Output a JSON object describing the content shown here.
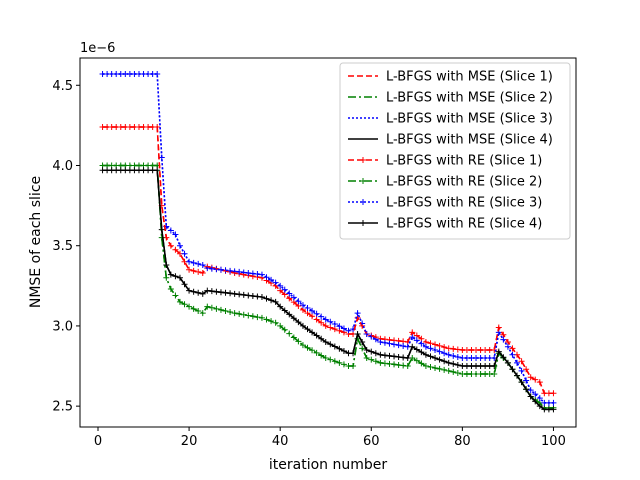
{
  "chart_data": {
    "type": "line",
    "xlabel": "iteration number",
    "ylabel": "NMSE of each slice",
    "offset_text": "1e−6",
    "xlim": [
      -3.95,
      104.95
    ],
    "ylim": [
      2.37,
      4.67
    ],
    "x_ticks": [
      0,
      20,
      40,
      60,
      80,
      100
    ],
    "x_tick_labels": [
      "0",
      "20",
      "40",
      "60",
      "80",
      "100"
    ],
    "y_ticks": [
      2.5,
      3.0,
      3.5,
      4.0,
      4.5
    ],
    "y_tick_labels": [
      "2.5",
      "3.0",
      "3.5",
      "4.0",
      "4.5"
    ],
    "grid": false,
    "legend_position": "top-right",
    "x_range": [
      1,
      100
    ],
    "series": [
      {
        "name": "L-BFGS with MSE (Slice 1)",
        "color": "#ff0000",
        "dash": "dashed",
        "marker": "none",
        "key_points": [
          [
            1,
            4.24
          ],
          [
            13,
            4.24
          ],
          [
            14,
            3.75
          ],
          [
            15,
            3.55
          ],
          [
            16,
            3.5
          ],
          [
            18,
            3.45
          ],
          [
            20,
            3.35
          ],
          [
            23,
            3.33
          ],
          [
            24,
            3.37
          ],
          [
            30,
            3.33
          ],
          [
            36,
            3.3
          ],
          [
            39,
            3.25
          ],
          [
            40,
            3.22
          ],
          [
            45,
            3.1
          ],
          [
            50,
            3.0
          ],
          [
            55,
            2.95
          ],
          [
            56,
            2.95
          ],
          [
            57,
            3.05
          ],
          [
            59,
            2.95
          ],
          [
            62,
            2.92
          ],
          [
            68,
            2.9
          ],
          [
            69,
            2.96
          ],
          [
            72,
            2.9
          ],
          [
            77,
            2.86
          ],
          [
            80,
            2.85
          ],
          [
            87,
            2.85
          ],
          [
            88,
            2.99
          ],
          [
            90,
            2.9
          ],
          [
            93,
            2.78
          ],
          [
            95,
            2.68
          ],
          [
            97,
            2.65
          ],
          [
            98,
            2.58
          ],
          [
            100,
            2.58
          ]
        ]
      },
      {
        "name": "L-BFGS with MSE (Slice 2)",
        "color": "#008000",
        "dash": "dashdot",
        "marker": "none",
        "key_points": [
          [
            1,
            4.0
          ],
          [
            13,
            4.0
          ],
          [
            14,
            3.55
          ],
          [
            15,
            3.3
          ],
          [
            16,
            3.23
          ],
          [
            18,
            3.15
          ],
          [
            20,
            3.12
          ],
          [
            23,
            3.08
          ],
          [
            24,
            3.12
          ],
          [
            30,
            3.08
          ],
          [
            36,
            3.05
          ],
          [
            39,
            3.02
          ],
          [
            40,
            3.0
          ],
          [
            45,
            2.88
          ],
          [
            50,
            2.8
          ],
          [
            55,
            2.75
          ],
          [
            56,
            2.75
          ],
          [
            57,
            2.92
          ],
          [
            59,
            2.8
          ],
          [
            62,
            2.77
          ],
          [
            68,
            2.75
          ],
          [
            69,
            2.8
          ],
          [
            72,
            2.75
          ],
          [
            77,
            2.72
          ],
          [
            80,
            2.7
          ],
          [
            87,
            2.7
          ],
          [
            88,
            2.83
          ],
          [
            90,
            2.77
          ],
          [
            93,
            2.65
          ],
          [
            95,
            2.56
          ],
          [
            97,
            2.52
          ],
          [
            98,
            2.49
          ],
          [
            100,
            2.49
          ]
        ]
      },
      {
        "name": "L-BFGS with MSE (Slice 3)",
        "color": "#0000ff",
        "dash": "dotted",
        "marker": "none",
        "key_points": [
          [
            1,
            4.57
          ],
          [
            13,
            4.57
          ],
          [
            14,
            4.05
          ],
          [
            15,
            3.62
          ],
          [
            17,
            3.57
          ],
          [
            18,
            3.5
          ],
          [
            20,
            3.4
          ],
          [
            23,
            3.38
          ],
          [
            24,
            3.36
          ],
          [
            30,
            3.34
          ],
          [
            36,
            3.32
          ],
          [
            39,
            3.27
          ],
          [
            40,
            3.25
          ],
          [
            45,
            3.13
          ],
          [
            50,
            3.04
          ],
          [
            55,
            2.97
          ],
          [
            56,
            2.98
          ],
          [
            57,
            3.08
          ],
          [
            59,
            2.95
          ],
          [
            62,
            2.9
          ],
          [
            68,
            2.87
          ],
          [
            69,
            2.93
          ],
          [
            72,
            2.87
          ],
          [
            77,
            2.82
          ],
          [
            80,
            2.8
          ],
          [
            87,
            2.8
          ],
          [
            88,
            2.96
          ],
          [
            90,
            2.87
          ],
          [
            93,
            2.72
          ],
          [
            95,
            2.6
          ],
          [
            97,
            2.55
          ],
          [
            98,
            2.52
          ],
          [
            100,
            2.52
          ]
        ]
      },
      {
        "name": "L-BFGS with MSE (Slice 4)",
        "color": "#000000",
        "dash": "solid",
        "marker": "none",
        "key_points": [
          [
            1,
            3.97
          ],
          [
            13,
            3.97
          ],
          [
            14,
            3.6
          ],
          [
            15,
            3.38
          ],
          [
            16,
            3.32
          ],
          [
            18,
            3.3
          ],
          [
            20,
            3.22
          ],
          [
            23,
            3.2
          ],
          [
            24,
            3.22
          ],
          [
            30,
            3.2
          ],
          [
            36,
            3.18
          ],
          [
            39,
            3.15
          ],
          [
            40,
            3.12
          ],
          [
            45,
            3.0
          ],
          [
            50,
            2.9
          ],
          [
            55,
            2.83
          ],
          [
            56,
            2.83
          ],
          [
            57,
            2.95
          ],
          [
            59,
            2.85
          ],
          [
            62,
            2.82
          ],
          [
            68,
            2.8
          ],
          [
            69,
            2.87
          ],
          [
            72,
            2.82
          ],
          [
            77,
            2.77
          ],
          [
            80,
            2.75
          ],
          [
            87,
            2.75
          ],
          [
            88,
            2.84
          ],
          [
            90,
            2.77
          ],
          [
            93,
            2.65
          ],
          [
            95,
            2.56
          ],
          [
            97,
            2.5
          ],
          [
            98,
            2.48
          ],
          [
            100,
            2.48
          ]
        ]
      },
      {
        "name": "L-BFGS with RE (Slice 1)",
        "color": "#ff0000",
        "dash": "dashed",
        "marker": "plus",
        "key_points": [
          [
            1,
            4.24
          ],
          [
            13,
            4.24
          ],
          [
            14,
            3.75
          ],
          [
            15,
            3.55
          ],
          [
            16,
            3.5
          ],
          [
            18,
            3.45
          ],
          [
            20,
            3.35
          ],
          [
            23,
            3.33
          ],
          [
            24,
            3.37
          ],
          [
            30,
            3.33
          ],
          [
            36,
            3.3
          ],
          [
            39,
            3.25
          ],
          [
            40,
            3.22
          ],
          [
            45,
            3.1
          ],
          [
            50,
            3.0
          ],
          [
            55,
            2.95
          ],
          [
            56,
            2.95
          ],
          [
            57,
            3.05
          ],
          [
            59,
            2.95
          ],
          [
            62,
            2.92
          ],
          [
            68,
            2.9
          ],
          [
            69,
            2.96
          ],
          [
            72,
            2.9
          ],
          [
            77,
            2.86
          ],
          [
            80,
            2.85
          ],
          [
            87,
            2.85
          ],
          [
            88,
            2.99
          ],
          [
            90,
            2.9
          ],
          [
            93,
            2.78
          ],
          [
            95,
            2.68
          ],
          [
            97,
            2.65
          ],
          [
            98,
            2.58
          ],
          [
            100,
            2.58
          ]
        ]
      },
      {
        "name": "L-BFGS with RE (Slice 2)",
        "color": "#008000",
        "dash": "dashdot",
        "marker": "plus",
        "key_points": [
          [
            1,
            4.0
          ],
          [
            13,
            4.0
          ],
          [
            14,
            3.55
          ],
          [
            15,
            3.3
          ],
          [
            16,
            3.23
          ],
          [
            18,
            3.15
          ],
          [
            20,
            3.12
          ],
          [
            23,
            3.08
          ],
          [
            24,
            3.12
          ],
          [
            30,
            3.08
          ],
          [
            36,
            3.05
          ],
          [
            39,
            3.02
          ],
          [
            40,
            3.0
          ],
          [
            45,
            2.88
          ],
          [
            50,
            2.8
          ],
          [
            55,
            2.75
          ],
          [
            56,
            2.75
          ],
          [
            57,
            2.92
          ],
          [
            59,
            2.8
          ],
          [
            62,
            2.77
          ],
          [
            68,
            2.75
          ],
          [
            69,
            2.8
          ],
          [
            72,
            2.75
          ],
          [
            77,
            2.72
          ],
          [
            80,
            2.7
          ],
          [
            87,
            2.7
          ],
          [
            88,
            2.83
          ],
          [
            90,
            2.77
          ],
          [
            93,
            2.65
          ],
          [
            95,
            2.56
          ],
          [
            97,
            2.52
          ],
          [
            98,
            2.49
          ],
          [
            100,
            2.49
          ]
        ]
      },
      {
        "name": "L-BFGS with RE (Slice 3)",
        "color": "#0000ff",
        "dash": "dotted",
        "marker": "plus",
        "key_points": [
          [
            1,
            4.57
          ],
          [
            13,
            4.57
          ],
          [
            14,
            4.05
          ],
          [
            15,
            3.62
          ],
          [
            17,
            3.57
          ],
          [
            18,
            3.5
          ],
          [
            20,
            3.4
          ],
          [
            23,
            3.38
          ],
          [
            24,
            3.36
          ],
          [
            30,
            3.34
          ],
          [
            36,
            3.32
          ],
          [
            39,
            3.27
          ],
          [
            40,
            3.25
          ],
          [
            45,
            3.13
          ],
          [
            50,
            3.04
          ],
          [
            55,
            2.97
          ],
          [
            56,
            2.98
          ],
          [
            57,
            3.08
          ],
          [
            59,
            2.95
          ],
          [
            62,
            2.9
          ],
          [
            68,
            2.87
          ],
          [
            69,
            2.93
          ],
          [
            72,
            2.87
          ],
          [
            77,
            2.82
          ],
          [
            80,
            2.8
          ],
          [
            87,
            2.8
          ],
          [
            88,
            2.96
          ],
          [
            90,
            2.87
          ],
          [
            93,
            2.72
          ],
          [
            95,
            2.6
          ],
          [
            97,
            2.55
          ],
          [
            98,
            2.52
          ],
          [
            100,
            2.52
          ]
        ]
      },
      {
        "name": "L-BFGS with RE (Slice 4)",
        "color": "#000000",
        "dash": "solid",
        "marker": "plus",
        "key_points": [
          [
            1,
            3.97
          ],
          [
            13,
            3.97
          ],
          [
            14,
            3.6
          ],
          [
            15,
            3.38
          ],
          [
            16,
            3.32
          ],
          [
            18,
            3.3
          ],
          [
            20,
            3.22
          ],
          [
            23,
            3.2
          ],
          [
            24,
            3.22
          ],
          [
            30,
            3.2
          ],
          [
            36,
            3.18
          ],
          [
            39,
            3.15
          ],
          [
            40,
            3.12
          ],
          [
            45,
            3.0
          ],
          [
            50,
            2.9
          ],
          [
            55,
            2.83
          ],
          [
            56,
            2.83
          ],
          [
            57,
            2.95
          ],
          [
            59,
            2.85
          ],
          [
            62,
            2.82
          ],
          [
            68,
            2.8
          ],
          [
            69,
            2.87
          ],
          [
            72,
            2.82
          ],
          [
            77,
            2.77
          ],
          [
            80,
            2.75
          ],
          [
            87,
            2.75
          ],
          [
            88,
            2.84
          ],
          [
            90,
            2.77
          ],
          [
            93,
            2.65
          ],
          [
            95,
            2.56
          ],
          [
            97,
            2.5
          ],
          [
            98,
            2.48
          ],
          [
            100,
            2.48
          ]
        ]
      }
    ]
  }
}
